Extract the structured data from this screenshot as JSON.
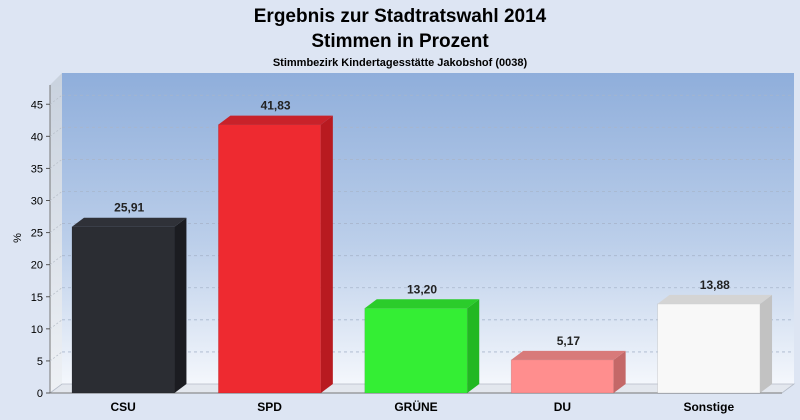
{
  "chart_data": {
    "type": "bar",
    "title": "Ergebnis zur Stadtratswahl 2014",
    "subtitle": "Stimmen in Prozent",
    "subsubtitle": "Stimmbezirk Kindertagesstätte Jakobshof (0038)",
    "ylabel": "%",
    "xlabel": "",
    "ylim": [
      0,
      48
    ],
    "yticks": [
      "0",
      "5",
      "10",
      "15",
      "20",
      "25",
      "30",
      "35",
      "40",
      "45"
    ],
    "grid": true,
    "categories": [
      "CSU",
      "SPD",
      "GRÜNE",
      "DU",
      "Sonstige"
    ],
    "values": [
      25.91,
      41.83,
      13.2,
      5.17,
      13.88
    ],
    "value_labels": [
      "25,91",
      "41,83",
      "13,20",
      "5,17",
      "13,88"
    ],
    "colors": [
      "#2b2d33",
      "#ee2a30",
      "#34ee34",
      "#ff8e8e",
      "#f8f8f8"
    ],
    "side_colors": [
      "#1b1c21",
      "#b81a20",
      "#22b822",
      "#c46868",
      "#c2c2c2"
    ],
    "top_colors": [
      "#2f3138",
      "#c8222a",
      "#2bcc2b",
      "#d87a7a",
      "#d4d4d4"
    ]
  }
}
